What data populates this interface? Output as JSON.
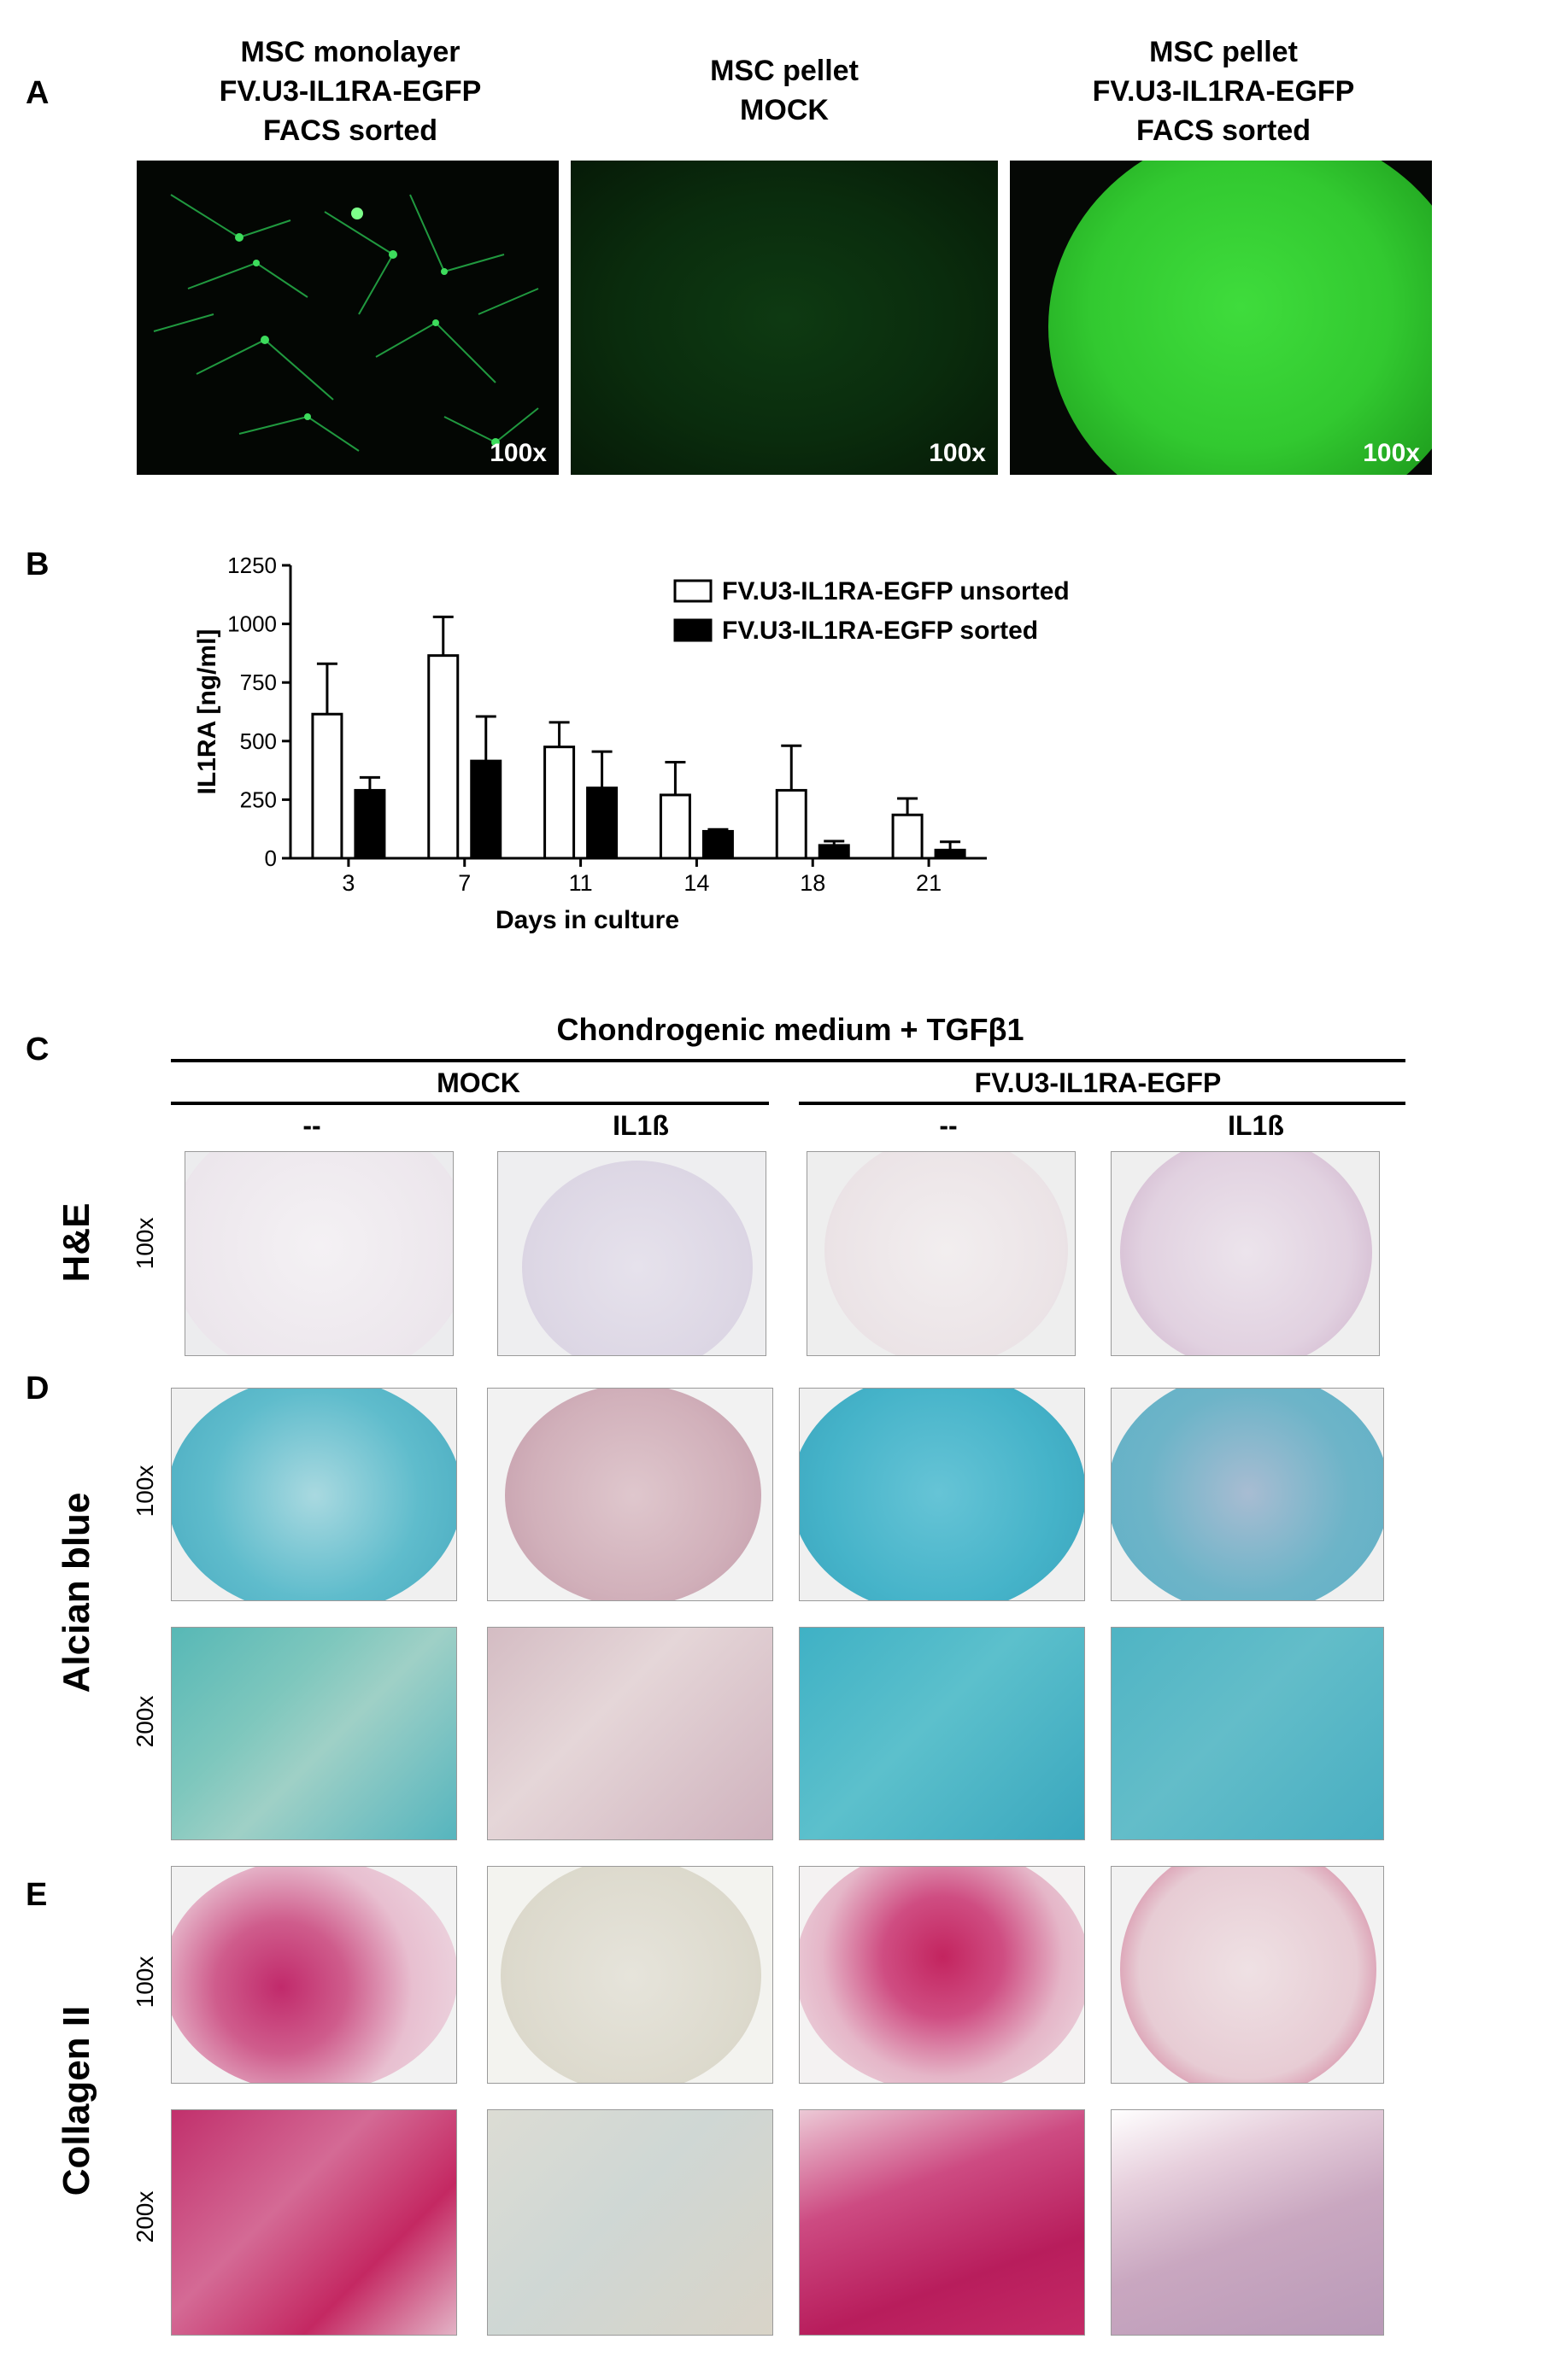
{
  "panels": {
    "A": "A",
    "B": "B",
    "C": "C",
    "D": "D",
    "E": "E"
  },
  "panelA": {
    "headers": [
      [
        "MSC monolayer",
        "FV.U3-IL1RA-EGFP",
        "FACS sorted"
      ],
      [
        "MSC pellet",
        "MOCK"
      ],
      [
        "MSC pellet",
        "FV.U3-IL1RA-EGFP",
        "FACS sorted"
      ]
    ],
    "magnification": "100x"
  },
  "chart_data": {
    "type": "bar",
    "categories": [
      "3",
      "7",
      "11",
      "14",
      "18",
      "21"
    ],
    "xlabel": "Days in culture",
    "ylabel": "IL1RA [ng/ml]",
    "ylim": [
      0,
      1250
    ],
    "yticks": [
      0,
      250,
      500,
      750,
      1000,
      1250
    ],
    "legend_position": "top-right",
    "series": [
      {
        "name": "FV.U3-IL1RA-EGFP unsorted",
        "fill": "#ffffff",
        "values": [
          615,
          865,
          475,
          270,
          290,
          185
        ],
        "errors": [
          215,
          165,
          105,
          140,
          190,
          70
        ]
      },
      {
        "name": "FV.U3-IL1RA-EGFP sorted",
        "fill": "#000000",
        "values": [
          290,
          415,
          300,
          115,
          55,
          35
        ],
        "errors": [
          55,
          190,
          155,
          8,
          18,
          35
        ]
      }
    ]
  },
  "panelC": {
    "title": "Chondrogenic medium + TGFβ1",
    "groups": [
      "MOCK",
      "FV.U3-IL1RA-EGFP"
    ],
    "conditions": [
      "--",
      "IL1ß",
      "--",
      "IL1ß"
    ]
  },
  "rows": {
    "he": {
      "label": "H&E",
      "mag": "100x"
    },
    "alcian": {
      "label": "Alcian blue",
      "mag1": "100x",
      "mag2": "200x"
    },
    "collagen": {
      "label": "Collagen II",
      "mag1": "100x",
      "mag2": "200x"
    }
  },
  "colors": {
    "egfp": "#2ec83a",
    "alcian": "#4bb5c8",
    "collagen": "#c2185b",
    "he": "#7a4a6e"
  }
}
